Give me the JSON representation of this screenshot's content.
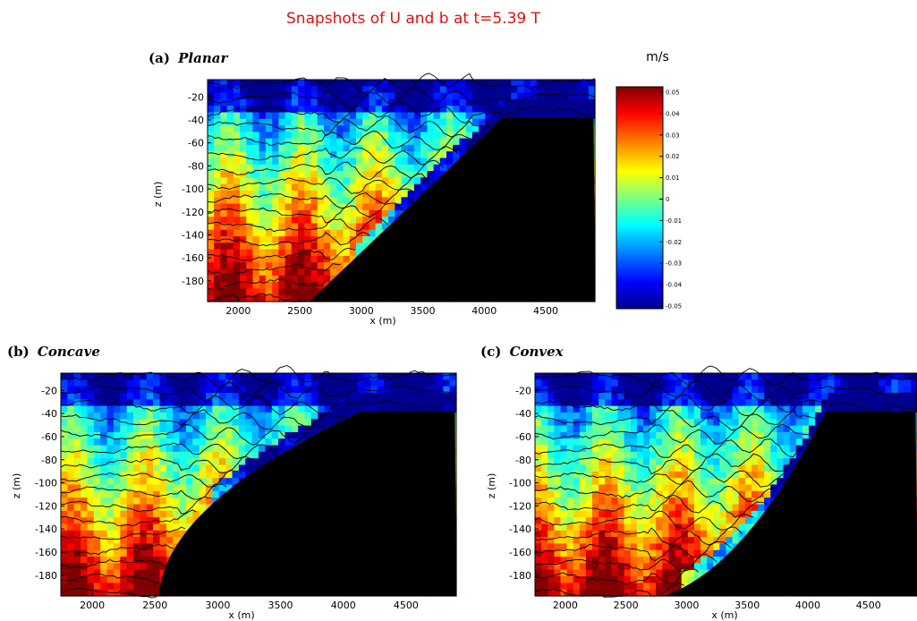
{
  "chart_data": {
    "type": "heatmap",
    "title": "Snapshots of U and b at t=5.39 T",
    "colorbar": {
      "unit": "m/s",
      "ticks": [
        "0.05",
        "0.04",
        "0.03",
        "0.02",
        "0.01",
        "0",
        "-0.01",
        "-0.02",
        "-0.03",
        "-0.04",
        "-0.05"
      ],
      "range": [
        -0.05,
        0.05
      ],
      "colormap": [
        "#00008f",
        "#0000ff",
        "#0080ff",
        "#00ffff",
        "#80ff80",
        "#ffff00",
        "#ff8000",
        "#ff0000",
        "#800000"
      ]
    },
    "panels": [
      {
        "label": "(a)",
        "name": "Planar",
        "xlabel": "x (m)",
        "ylabel": "z (m)",
        "xlim": [
          1750,
          4900
        ],
        "ylim": [
          -198,
          -5
        ],
        "xticks": [
          2000,
          2500,
          3000,
          3500,
          4000,
          4500
        ],
        "yticks": [
          -20,
          -40,
          -60,
          -80,
          -100,
          -120,
          -140,
          -160,
          -180
        ],
        "slope_shape": "planar",
        "slope_start_x": 2530,
        "slope_end_x": 4150,
        "shelf_depth": -38
      },
      {
        "label": "(b)",
        "name": "Concave",
        "xlabel": "x (m)",
        "ylabel": "z (m)",
        "xlim": [
          1750,
          4900
        ],
        "ylim": [
          -198,
          -5
        ],
        "xticks": [
          2000,
          2500,
          3000,
          3500,
          4000,
          4500
        ],
        "yticks": [
          -20,
          -40,
          -60,
          -80,
          -100,
          -120,
          -140,
          -160,
          -180
        ],
        "slope_shape": "concave",
        "slope_start_x": 2530,
        "slope_end_x": 4150,
        "shelf_depth": -38
      },
      {
        "label": "(c)",
        "name": "Convex",
        "xlabel": "x (m)",
        "ylabel": "z (m)",
        "xlim": [
          1750,
          4900
        ],
        "ylim": [
          -198,
          -5
        ],
        "xticks": [
          2000,
          2500,
          3000,
          3500,
          4000,
          4500
        ],
        "yticks": [
          -20,
          -40,
          -60,
          -80,
          -100,
          -120,
          -140,
          -160,
          -180
        ],
        "slope_shape": "convex",
        "slope_start_x": 2530,
        "slope_end_x": 4150,
        "shelf_depth": -38
      }
    ]
  }
}
